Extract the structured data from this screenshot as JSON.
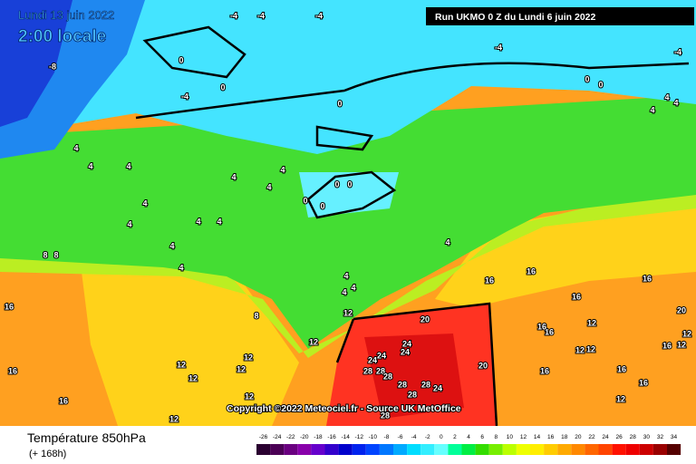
{
  "header": {
    "date": "Lundi 13 juin 2022",
    "time": "2:00 locale",
    "run": "Run UKMO 0 Z du Lundi 6 juin 2022"
  },
  "map": {
    "contour_labels": [
      -4,
      -4,
      -4,
      0,
      0,
      -4,
      -8,
      0,
      -4,
      -4,
      0,
      0,
      4,
      4,
      4,
      4,
      4,
      4,
      4,
      4,
      4,
      0,
      0,
      0,
      0,
      4,
      4,
      4,
      4,
      4,
      4,
      8,
      8,
      4,
      4,
      4,
      8,
      12,
      4,
      16,
      16,
      16,
      16,
      16,
      16,
      16,
      12,
      12,
      12,
      12,
      12,
      12,
      12,
      20,
      24,
      24,
      24,
      24,
      28,
      28,
      28,
      28,
      28,
      28,
      24,
      28,
      20,
      16,
      12,
      16,
      12,
      16,
      16,
      12,
      12,
      16,
      12,
      12,
      16,
      20
    ]
  },
  "copyright": "Copyright ©2022 Meteociel.fr - Source UK MetOffice",
  "legend": {
    "title": "Température 850hPa",
    "subtitle": "(+ 168h)",
    "values": [
      -26,
      -24,
      -22,
      -20,
      -18,
      -16,
      -14,
      -12,
      -10,
      -8,
      -6,
      -4,
      -2,
      0,
      2,
      4,
      6,
      8,
      10,
      12,
      14,
      16,
      18,
      20,
      22,
      24,
      26,
      28,
      30,
      32,
      34
    ],
    "colors": [
      "#2a0030",
      "#4b0055",
      "#6a0080",
      "#8800aa",
      "#6600cc",
      "#3300cc",
      "#0000cc",
      "#0022ee",
      "#0044ff",
      "#0077ff",
      "#00aaff",
      "#00ddff",
      "#33eeff",
      "#66ffff",
      "#00ff99",
      "#00ee44",
      "#33dd00",
      "#77ee00",
      "#bbff00",
      "#eeff00",
      "#ffee00",
      "#ffcc00",
      "#ffaa00",
      "#ff8800",
      "#ff6600",
      "#ff4400",
      "#ff1100",
      "#ee0000",
      "#cc0000",
      "#990000",
      "#550000"
    ]
  }
}
